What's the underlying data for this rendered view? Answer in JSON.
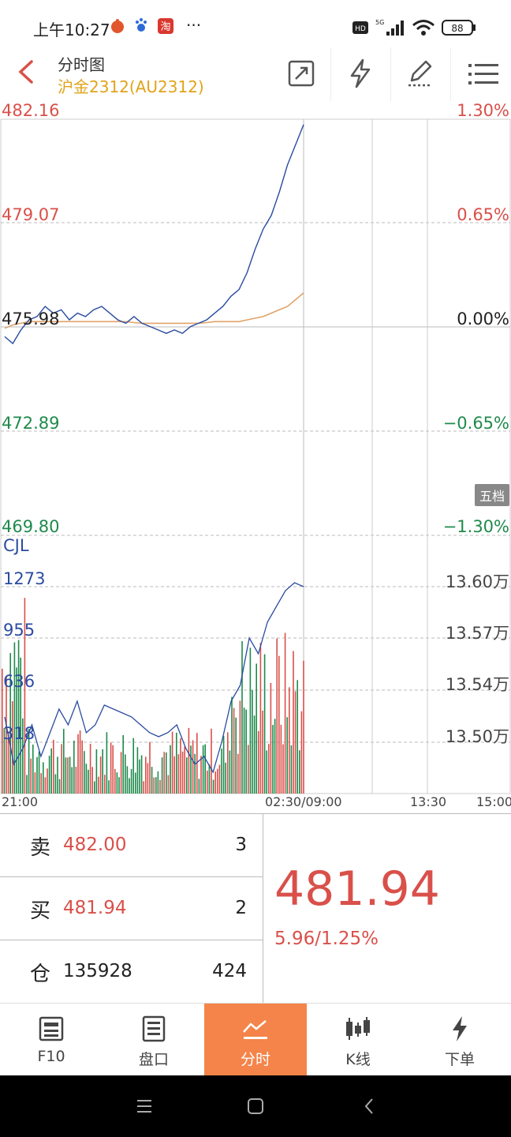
{
  "status": {
    "time": "上午10:27",
    "battery": "88",
    "network": "5G",
    "hd": "HD",
    "more": "···"
  },
  "header": {
    "title": "分时图",
    "subtitle": "沪金2312(AU2312)"
  },
  "chart": {
    "price_axis_left": [
      "482.16",
      "479.07",
      "475.98",
      "472.89",
      "469.80"
    ],
    "price_axis_right": [
      "1.30%",
      "0.65%",
      "0.00%",
      "−0.65%",
      "−1.30%"
    ],
    "volume_label": "CJL",
    "volume_axis_left": [
      "1273",
      "955",
      "636",
      "318"
    ],
    "volume_axis_right": [
      "13.60万",
      "13.57万",
      "13.54万",
      "13.50万"
    ],
    "time_axis": [
      "21:00",
      "02:30/09:00",
      "13:30",
      "15:00"
    ],
    "five_level_label": "五档"
  },
  "chart_data": {
    "type": "line",
    "title": "",
    "series": [
      {
        "values": [
          475.7,
          475.5,
          475.9,
          476.2,
          476.3,
          476.6,
          476.4,
          476.5,
          476.2,
          476.4,
          476.3,
          476.5,
          476.6,
          476.4,
          476.2,
          476.1,
          476.3,
          476.1,
          476.0,
          475.9,
          475.8,
          475.9,
          475.8,
          476.0,
          476.1,
          476.2,
          476.4,
          476.6,
          476.9,
          477.1,
          477.6,
          478.3,
          478.9,
          479.3,
          480.0,
          480.8,
          481.4,
          482.0
        ]
      },
      {
        "values": [
          475.95,
          476.05,
          476.1,
          476.15,
          476.15,
          476.15,
          476.15,
          476.15,
          476.15,
          476.15,
          476.15,
          476.15,
          476.15,
          476.15,
          476.15,
          476.15,
          476.12,
          476.1,
          476.1,
          476.1,
          476.1,
          476.1,
          476.1,
          476.1,
          476.1,
          476.12,
          476.15,
          476.15,
          476.15,
          476.15,
          476.2,
          476.25,
          476.3,
          476.4,
          476.5,
          476.6,
          476.8,
          477.0
        ]
      }
    ],
    "ylim": [
      469.8,
      482.16
    ],
    "xlabel": "",
    "ylabel": ""
  },
  "quote": {
    "sell_label": "卖",
    "sell_price": "482.00",
    "sell_qty": "3",
    "buy_label": "买",
    "buy_price": "481.94",
    "buy_qty": "2",
    "oi_label": "仓",
    "oi_value": "135928",
    "oi_change": "424",
    "last_price": "481.94",
    "change": "5.96/1.25%"
  },
  "tabs": [
    {
      "label": "F10",
      "icon": "news-icon"
    },
    {
      "label": "盘口",
      "icon": "list-icon"
    },
    {
      "label": "分时",
      "icon": "line-chart-icon",
      "active": true
    },
    {
      "label": "K线",
      "icon": "candlestick-icon"
    },
    {
      "label": "下单",
      "icon": "lightning-icon"
    }
  ],
  "colors": {
    "up": "#d9504a",
    "down": "#1f8a4c",
    "price_line": "#2a4ba0",
    "avg_line": "#e0a36a",
    "accent": "#f4844a"
  }
}
